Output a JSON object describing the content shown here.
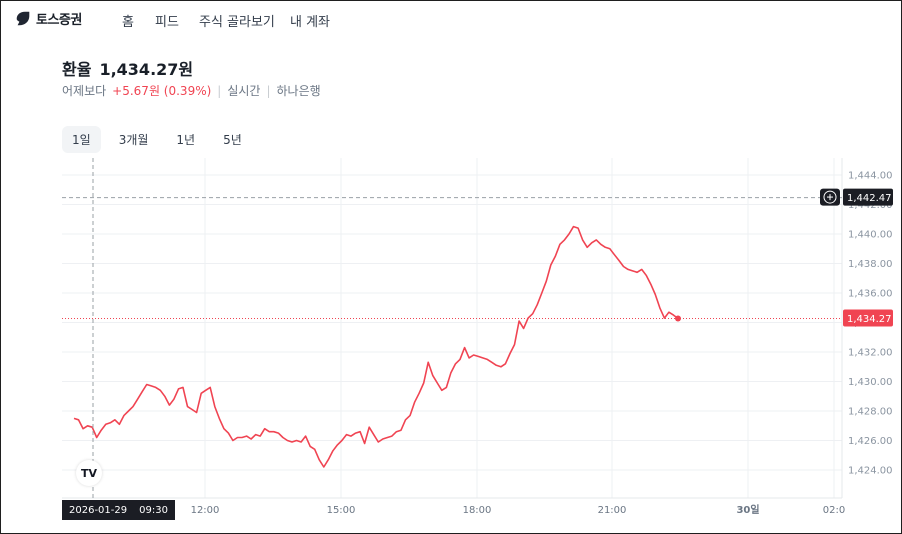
{
  "brand": {
    "name": "토스증권"
  },
  "nav": {
    "items": [
      "홈",
      "피드",
      "주식 골라보기",
      "내 계좌"
    ]
  },
  "header": {
    "title": "환율",
    "price": "1,434.27원",
    "compare_label": "어제보다",
    "change": "+5.67원 (0.39%)",
    "realtime_label": "실시간",
    "source": "하나은행"
  },
  "tabs": [
    {
      "label": "1일",
      "active": true
    },
    {
      "label": "3개월",
      "active": false
    },
    {
      "label": "1년",
      "active": false
    },
    {
      "label": "5년",
      "active": false
    }
  ],
  "crosshair": {
    "date": "2026-01-29",
    "time": "09:30",
    "price_label": "1,442.47"
  },
  "current_price_label": "1,434.27",
  "tv_badge": "TV",
  "colors": {
    "line": "#f04452",
    "accent": "#f04452",
    "dark": "#1b1d24"
  },
  "chart_data": {
    "type": "line",
    "title": "",
    "xlabel": "",
    "ylabel": "",
    "ylim": [
      1422.4,
      1445.0
    ],
    "y_ticks": [
      "1,424.00",
      "1,426.00",
      "1,428.00",
      "1,430.00",
      "1,432.00",
      "1,434.00",
      "1,436.00",
      "1,438.00",
      "1,440.00",
      "1,442.00",
      "1,444.00"
    ],
    "x_ticks": [
      "12:00",
      "15:00",
      "18:00",
      "21:00",
      "30일",
      "02:0"
    ],
    "series": [
      {
        "values": [
          1427.5,
          1427.4,
          1426.8,
          1427.0,
          1426.9,
          1426.2,
          1426.7,
          1427.1,
          1427.2,
          1427.4,
          1427.1,
          1427.7,
          1428.0,
          1428.3,
          1428.8,
          1429.3,
          1429.8,
          1429.7,
          1429.6,
          1429.4,
          1429.0,
          1428.4,
          1428.8,
          1429.5,
          1429.6,
          1428.3,
          1428.1,
          1427.9,
          1429.2,
          1429.4,
          1429.6,
          1428.3,
          1427.5,
          1426.8,
          1426.5,
          1426.0,
          1426.2,
          1426.2,
          1426.3,
          1426.1,
          1426.4,
          1426.3,
          1426.8,
          1426.6,
          1426.6,
          1426.5,
          1426.2,
          1426.0,
          1425.9,
          1426.0,
          1425.9,
          1426.3,
          1425.6,
          1425.4,
          1424.7,
          1424.2,
          1424.7,
          1425.3,
          1425.7,
          1426.0,
          1426.4,
          1426.3,
          1426.5,
          1426.6,
          1425.8,
          1426.9,
          1426.4,
          1425.9,
          1426.1,
          1426.2,
          1426.3,
          1426.6,
          1426.7,
          1427.4,
          1427.7,
          1428.6,
          1429.2,
          1429.9,
          1431.3,
          1430.4,
          1429.9,
          1429.4,
          1429.6,
          1430.6,
          1431.2,
          1431.5,
          1432.3,
          1431.6,
          1431.8,
          1431.7,
          1431.6,
          1431.5,
          1431.3,
          1431.1,
          1431.0,
          1431.2,
          1431.9,
          1432.5,
          1434.1,
          1433.6,
          1434.3,
          1434.6,
          1435.2,
          1436.0,
          1436.8,
          1437.9,
          1438.5,
          1439.3,
          1439.6,
          1440.0,
          1440.5,
          1440.4,
          1439.6,
          1439.1,
          1439.4,
          1439.6,
          1439.3,
          1439.1,
          1439.0,
          1438.6,
          1438.2,
          1437.8,
          1437.6,
          1437.5,
          1437.4,
          1437.6,
          1437.2,
          1436.6,
          1435.9,
          1435.0,
          1434.3,
          1434.7,
          1434.5,
          1434.27
        ]
      }
    ],
    "grid": true,
    "legend": "none"
  }
}
